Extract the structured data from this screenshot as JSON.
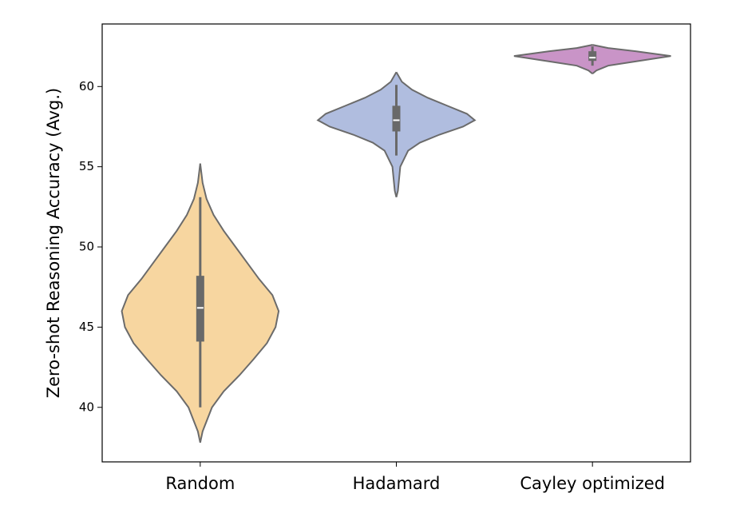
{
  "chart_data": {
    "type": "violin",
    "y_label": "Zero-shot Reasoning Accuracy (Avg.)",
    "categories": [
      "Random",
      "Hadamard",
      "Cayley optimized"
    ],
    "ylim": [
      36.6,
      63.9
    ],
    "yticks": [
      40,
      45,
      50,
      55,
      60
    ],
    "outline_color": "#6b6b6b",
    "box_color": "#696969",
    "series": [
      {
        "color": "#f7d6a0",
        "box": {
          "min": 40,
          "q1": 44.1,
          "median": 46.2,
          "q3": 48.2,
          "max": 53.1
        },
        "violin": {
          "y": [
            37.8,
            38.5,
            40,
            41,
            42,
            43,
            44,
            45,
            46,
            47,
            48,
            49,
            50,
            51,
            52,
            53,
            54,
            55.2
          ],
          "width": [
            0,
            0.03,
            0.15,
            0.3,
            0.5,
            0.68,
            0.85,
            0.96,
            1,
            0.92,
            0.75,
            0.6,
            0.45,
            0.3,
            0.17,
            0.08,
            0.03,
            0
          ]
        }
      },
      {
        "color": "#b0bddf",
        "box": {
          "min": 55.7,
          "q1": 57.2,
          "median": 57.9,
          "q3": 58.8,
          "max": 60.1
        },
        "violin": {
          "y": [
            53.1,
            53.5,
            54,
            55,
            56,
            56.5,
            57,
            57.5,
            57.9,
            58.3,
            58.8,
            59.3,
            59.8,
            60.3,
            60.9
          ],
          "width": [
            0,
            0.02,
            0.03,
            0.05,
            0.15,
            0.3,
            0.55,
            0.85,
            1,
            0.9,
            0.65,
            0.4,
            0.2,
            0.07,
            0
          ]
        }
      },
      {
        "color": "#c994c7",
        "box": {
          "min": 61.3,
          "q1": 61.6,
          "median": 61.8,
          "q3": 62.2,
          "max": 62.5
        },
        "violin": {
          "y": [
            60.8,
            61.0,
            61.3,
            61.6,
            61.9,
            62.2,
            62.4,
            62.6
          ],
          "width": [
            0,
            0.05,
            0.2,
            0.6,
            1,
            0.55,
            0.2,
            0
          ]
        }
      }
    ]
  }
}
